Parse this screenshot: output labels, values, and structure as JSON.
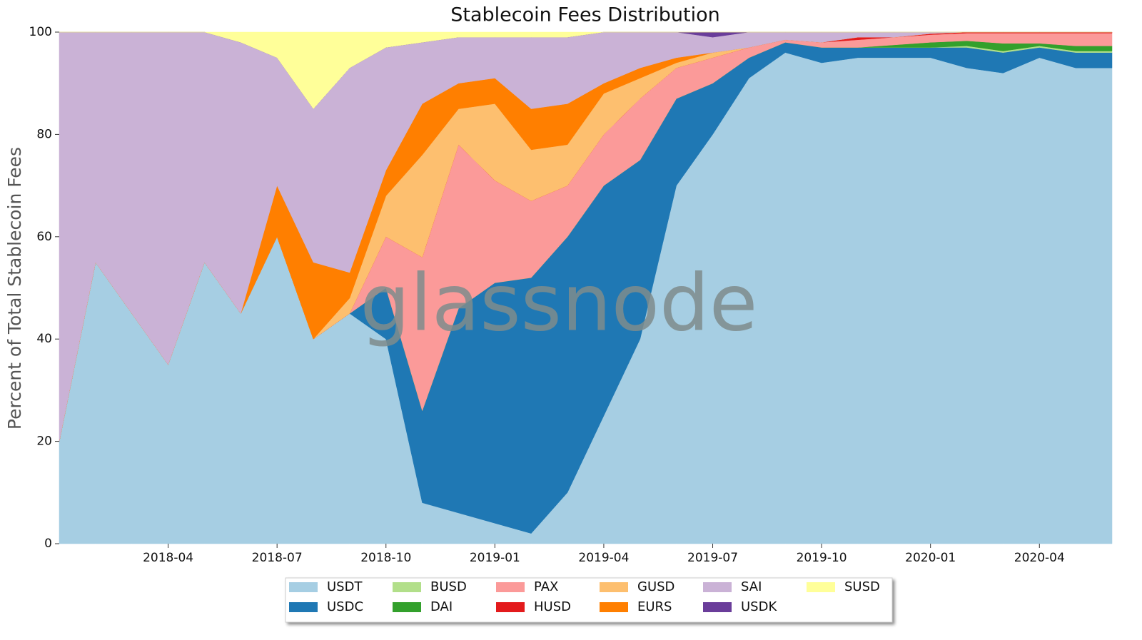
{
  "chart_data": {
    "type": "stacked_area",
    "title": "Stablecoin Fees Distribution",
    "y_label": "Percent of Total Stablecoin Fees",
    "watermark": "glassnode",
    "x": [
      "2018-01",
      "2018-02",
      "2018-03",
      "2018-04",
      "2018-05",
      "2018-06",
      "2018-07",
      "2018-08",
      "2018-09",
      "2018-10",
      "2018-11",
      "2018-12",
      "2019-01",
      "2019-02",
      "2019-03",
      "2019-04",
      "2019-05",
      "2019-06",
      "2019-07",
      "2019-08",
      "2019-09",
      "2019-10",
      "2019-11",
      "2019-12",
      "2020-01",
      "2020-02",
      "2020-03",
      "2020-04",
      "2020-05",
      "2020-06"
    ],
    "xlim": [
      "2018-01",
      "2020-06"
    ],
    "xticks": [
      "2018-04",
      "2018-07",
      "2018-10",
      "2019-01",
      "2019-04",
      "2019-07",
      "2019-10",
      "2020-01",
      "2020-04"
    ],
    "ylim": [
      0,
      100
    ],
    "yticks": [
      0,
      20,
      40,
      60,
      80,
      100
    ],
    "legend": "bottom",
    "series": [
      {
        "name": "USDT",
        "color": "#a6cee3",
        "values": [
          20,
          55,
          45,
          35,
          55,
          45,
          60,
          40,
          45,
          40,
          8,
          6,
          4,
          2,
          10,
          25,
          40,
          70,
          80,
          91,
          96,
          94,
          95,
          95,
          95,
          93,
          92,
          95,
          93,
          93
        ]
      },
      {
        "name": "USDC",
        "color": "#1f78b4",
        "values": [
          0,
          0,
          0,
          0,
          0,
          0,
          0,
          0,
          0,
          10,
          18,
          40,
          47,
          50,
          50,
          45,
          35,
          17,
          10,
          4,
          2,
          3,
          2,
          2,
          2,
          4,
          4,
          2,
          3,
          3
        ]
      },
      {
        "name": "BUSD",
        "color": "#b2df8a",
        "values": [
          0,
          0,
          0,
          0,
          0,
          0,
          0,
          0,
          0,
          0,
          0,
          0,
          0,
          0,
          0,
          0,
          0,
          0,
          0,
          0,
          0,
          0,
          0,
          0,
          0,
          0.3,
          0.3,
          0.3,
          0.3,
          0.3
        ]
      },
      {
        "name": "DAI",
        "color": "#33a02c",
        "values": [
          0,
          0,
          0,
          0,
          0,
          0,
          0,
          0,
          0,
          0,
          0,
          0,
          0,
          0,
          0,
          0,
          0,
          0,
          0,
          0,
          0,
          0,
          0,
          0.5,
          1,
          1,
          1.5,
          0.5,
          1,
          1
        ]
      },
      {
        "name": "PAX",
        "color": "#fb9a99",
        "values": [
          0,
          0,
          0,
          0,
          0,
          0,
          0,
          0,
          0,
          10,
          30,
          32,
          20,
          15,
          10,
          10,
          12,
          6,
          5,
          2,
          0.5,
          1,
          1.5,
          1.5,
          1.5,
          1.5,
          2,
          2,
          2.5,
          2.5
        ]
      },
      {
        "name": "HUSD",
        "color": "#e31a1c",
        "values": [
          0,
          0,
          0,
          0,
          0,
          0,
          0,
          0,
          0,
          0,
          0,
          0,
          0,
          0,
          0,
          0,
          0,
          0,
          0,
          0,
          0,
          0,
          0.5,
          0,
          0.2,
          0.2,
          0.2,
          0.2,
          0.2,
          0.2
        ]
      },
      {
        "name": "GUSD",
        "color": "#fdbf6f",
        "values": [
          0,
          0,
          0,
          0,
          0,
          0,
          0,
          0,
          3,
          8,
          20,
          7,
          15,
          10,
          8,
          8,
          4,
          1,
          1,
          0,
          0,
          0,
          0,
          0,
          0,
          0,
          0,
          0,
          0,
          0
        ]
      },
      {
        "name": "EURS",
        "color": "#ff7f00",
        "values": [
          0,
          0,
          0,
          0,
          0,
          0,
          10,
          15,
          5,
          5,
          10,
          5,
          5,
          8,
          8,
          2,
          2,
          1,
          0,
          0,
          0,
          0,
          0,
          0,
          0,
          0,
          0,
          0,
          0,
          0
        ]
      },
      {
        "name": "SAI",
        "color": "#cab2d6",
        "values": [
          80,
          45,
          55,
          65,
          45,
          53,
          25,
          30,
          40,
          24,
          12,
          9,
          8,
          14,
          13,
          10,
          7,
          5,
          3,
          3,
          1.5,
          2,
          1,
          1,
          0.3,
          0,
          0,
          0,
          0,
          0
        ]
      },
      {
        "name": "USDK",
        "color": "#6a3d9a",
        "values": [
          0,
          0,
          0,
          0,
          0,
          0,
          0,
          0,
          0,
          0,
          0,
          0,
          0,
          0,
          0,
          0,
          0,
          0,
          1,
          0,
          0,
          0,
          0,
          0,
          0,
          0,
          0,
          0,
          0,
          0
        ]
      },
      {
        "name": "SUSD",
        "color": "#ffff99",
        "values": [
          0,
          0,
          0,
          0,
          0,
          2,
          5,
          15,
          7,
          3,
          2,
          1,
          1,
          1,
          1,
          0,
          0,
          0,
          0,
          0,
          0,
          0,
          0,
          0,
          0,
          0,
          0,
          0,
          0,
          0
        ]
      }
    ]
  }
}
